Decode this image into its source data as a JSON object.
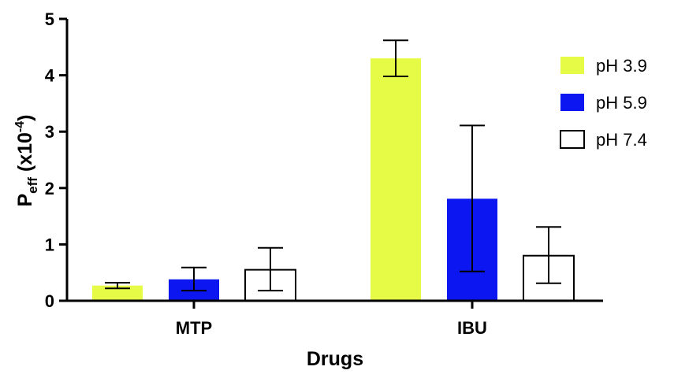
{
  "chart_data": {
    "type": "bar",
    "categories": [
      "MTP",
      "IBU"
    ],
    "series": [
      {
        "name": "pH 3.9",
        "color": "#e6fb45",
        "values": [
          0.27,
          4.3
        ],
        "err_low": [
          0.22,
          3.98
        ],
        "err_high": [
          0.32,
          4.62
        ]
      },
      {
        "name": "pH 5.9",
        "color": "#0b16f0",
        "values": [
          0.38,
          1.81
        ],
        "err_low": [
          0.18,
          0.52
        ],
        "err_high": [
          0.59,
          3.11
        ]
      },
      {
        "name": "pH 7.4",
        "color": "#ffffff",
        "values": [
          0.55,
          0.8
        ],
        "err_low": [
          0.18,
          0.31
        ],
        "err_high": [
          0.94,
          1.31
        ]
      }
    ],
    "xlabel": "Drugs",
    "ylabel_main": "P",
    "ylabel_sub": "eff",
    "ylabel_rest": " (x10",
    "ylabel_sup": "-4",
    "ylabel_close": ")",
    "ylim": [
      0,
      5
    ],
    "yticks": [
      "0",
      "1",
      "2",
      "3",
      "4",
      "5"
    ],
    "grid": false,
    "legend_position": "right"
  }
}
